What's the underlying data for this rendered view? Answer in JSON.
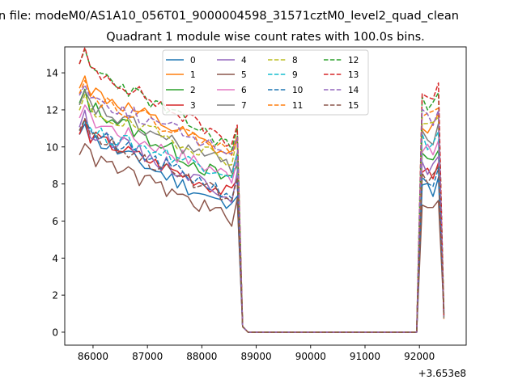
{
  "chart_data": {
    "type": "line",
    "suptitle": "n file: modeM0/AS1A10_056T01_9000004598_31571cztM0_level2_quad_clean",
    "title": "Quadrant 1 module wise count rates with 100.0s bins.",
    "xlabel": "",
    "ylabel": "",
    "x_offset_label": "+3.653e8",
    "xlim": [
      85480,
      92860
    ],
    "ylim": [
      -0.7,
      15.4
    ],
    "xticks": [
      86000,
      87000,
      88000,
      89000,
      90000,
      91000,
      92000
    ],
    "xtick_labels": [
      "86000",
      "87000",
      "88000",
      "89000",
      "90000",
      "91000",
      "92000"
    ],
    "yticks": [
      0,
      2,
      4,
      6,
      8,
      10,
      12,
      14
    ],
    "ytick_labels": [
      "0",
      "2",
      "4",
      "6",
      "8",
      "10",
      "12",
      "14"
    ],
    "legend_placement": "top-center",
    "grid": false,
    "series": [
      {
        "name": "0",
        "color": "#1f77b4",
        "dash": "solid",
        "start": 10.8,
        "end": 6.5,
        "post": 8.0,
        "noise": 0.45
      },
      {
        "name": "1",
        "color": "#ff7f0e",
        "dash": "solid",
        "start": 13.3,
        "end": 9.3,
        "post": 11.3,
        "noise": 0.45
      },
      {
        "name": "2",
        "color": "#2ca02c",
        "dash": "solid",
        "start": 12.5,
        "end": 7.9,
        "post": 9.6,
        "noise": 0.45
      },
      {
        "name": "3",
        "color": "#d62728",
        "dash": "solid",
        "start": 10.8,
        "end": 7.3,
        "post": 8.8,
        "noise": 0.4
      },
      {
        "name": "4",
        "color": "#9467bd",
        "dash": "solid",
        "start": 11.2,
        "end": 7.3,
        "post": 9.0,
        "noise": 0.45
      },
      {
        "name": "5",
        "color": "#8c564b",
        "dash": "solid",
        "start": 9.7,
        "end": 6.0,
        "post": 6.9,
        "noise": 0.45
      },
      {
        "name": "6",
        "color": "#e377c2",
        "dash": "solid",
        "start": 11.7,
        "end": 8.3,
        "post": 10.0,
        "noise": 0.45
      },
      {
        "name": "7",
        "color": "#7f7f7f",
        "dash": "solid",
        "start": 12.4,
        "end": 8.8,
        "post": 10.8,
        "noise": 0.45
      },
      {
        "name": "8",
        "color": "#bcbd22",
        "dash": "dashed",
        "start": 12.1,
        "end": 9.2,
        "post": 11.4,
        "noise": 0.4
      },
      {
        "name": "9",
        "color": "#17becf",
        "dash": "dashed",
        "start": 11.0,
        "end": 8.5,
        "post": 10.5,
        "noise": 0.4
      },
      {
        "name": "10",
        "color": "#1f77b4",
        "dash": "dashed",
        "start": 11.0,
        "end": 7.3,
        "post": 8.4,
        "noise": 0.4
      },
      {
        "name": "11",
        "color": "#ff7f0e",
        "dash": "dashed",
        "start": 13.0,
        "end": 9.6,
        "post": 11.9,
        "noise": 0.4
      },
      {
        "name": "12",
        "color": "#2ca02c",
        "dash": "dashed",
        "start": 14.6,
        "end": 9.8,
        "post": 12.6,
        "noise": 0.4
      },
      {
        "name": "13",
        "color": "#d62728",
        "dash": "dashed",
        "start": 14.6,
        "end": 10.1,
        "post": 13.0,
        "noise": 0.4
      },
      {
        "name": "14",
        "color": "#9467bd",
        "dash": "dashed",
        "start": 12.9,
        "end": 9.6,
        "post": 11.8,
        "noise": 0.4
      },
      {
        "name": "15",
        "color": "#8c564b",
        "dash": "dashed",
        "start": 11.0,
        "end": 7.0,
        "post": 8.6,
        "noise": 0.4
      }
    ],
    "time_grid": {
      "start": 85750,
      "end": 92450,
      "step": 100,
      "active_end": 88650,
      "drop_at": 88750,
      "drop_level": 0.3,
      "zero_from": 88850,
      "zero_to": 91950,
      "rise_at": 92050,
      "final_value": 1.0
    }
  }
}
